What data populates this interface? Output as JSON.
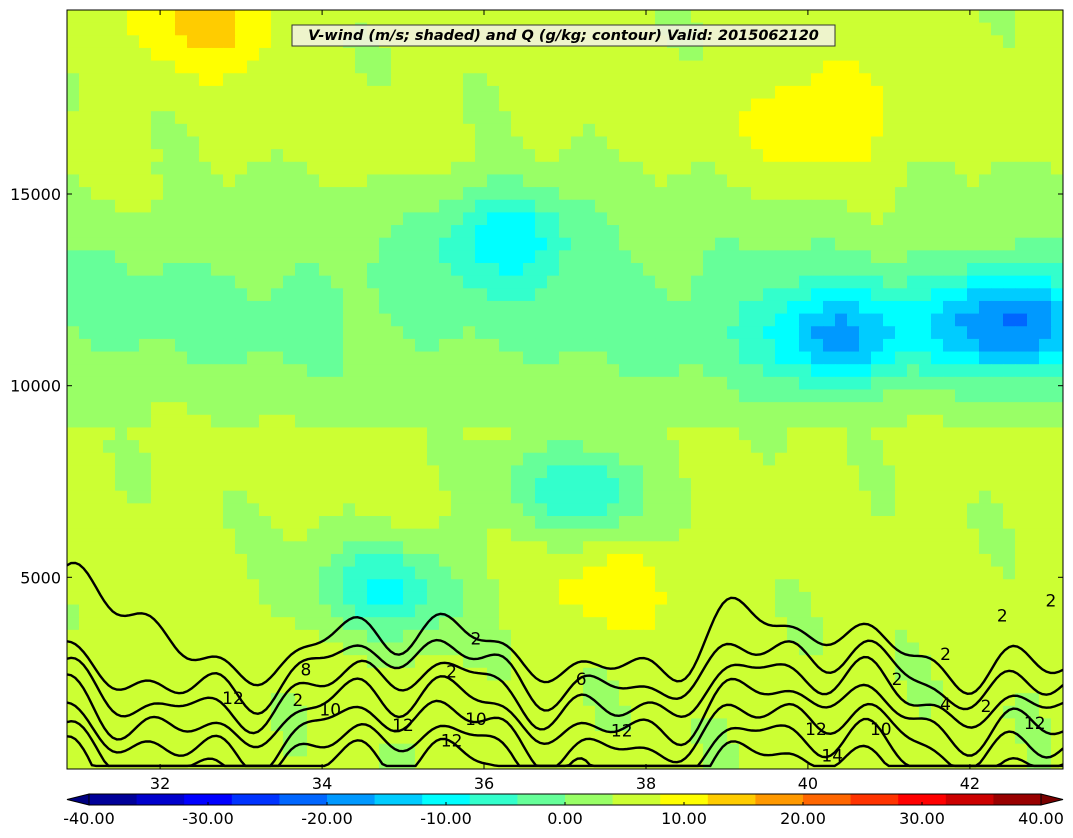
{
  "chart_data": {
    "type": "heatmap",
    "title": "V-wind (m/s; shaded) and Q (g/kg; contour) Valid: 2015062120",
    "xlabel": "",
    "ylabel": "",
    "xlim": [
      30.85,
      43.15
    ],
    "ylim": [
      0,
      19800
    ],
    "x_ticks": [
      32,
      34,
      36,
      38,
      40,
      42
    ],
    "y_ticks": [
      5000,
      10000,
      15000
    ],
    "grid": false,
    "colormap": "jet",
    "colorbar": {
      "range": [
        -40,
        40
      ],
      "levels": [
        -44,
        -40,
        -36,
        -32,
        -28,
        -24,
        -20,
        -16,
        -12,
        -8,
        -4,
        0,
        4,
        8,
        12,
        16,
        20,
        24,
        28,
        32,
        36,
        40,
        44
      ],
      "ticks": [
        "-40.00",
        "-30.00",
        "-20.00",
        "-10.00",
        "0.00",
        "10.00",
        "20.00",
        "30.00",
        "40.00"
      ],
      "extend": "both",
      "placement": "bottom"
    },
    "shaded_field": {
      "name": "V-wind (m/s)",
      "features": [
        {
          "kind": "max",
          "x": 40.2,
          "y": 17100,
          "value": 10
        },
        {
          "kind": "max",
          "x": 32.6,
          "y": 19600,
          "value": 12
        },
        {
          "kind": "max",
          "x": 37.6,
          "y": 4900,
          "value": 8
        },
        {
          "kind": "min",
          "x": 42.5,
          "y": 11700,
          "value": -14
        },
        {
          "kind": "min",
          "x": 40.3,
          "y": 11200,
          "value": -12
        },
        {
          "kind": "min",
          "x": 36.3,
          "y": 14000,
          "value": -10
        },
        {
          "kind": "min",
          "x": 34.8,
          "y": 4700,
          "value": -10
        },
        {
          "kind": "min",
          "x": 37.2,
          "y": 7300,
          "value": -9
        }
      ]
    },
    "contours": {
      "name": "Q (g/kg)",
      "color": "#000000",
      "levels": [
        2,
        4,
        6,
        8,
        10,
        12,
        14
      ],
      "labels": [
        {
          "text": "8",
          "x": 33.8,
          "y": 2600
        },
        {
          "text": "12",
          "x": 32.9,
          "y": 1850
        },
        {
          "text": "2",
          "x": 33.7,
          "y": 1800
        },
        {
          "text": "10",
          "x": 34.1,
          "y": 1550
        },
        {
          "text": "12",
          "x": 35.0,
          "y": 1150
        },
        {
          "text": "2",
          "x": 35.6,
          "y": 2550
        },
        {
          "text": "2",
          "x": 35.9,
          "y": 3400
        },
        {
          "text": "12",
          "x": 35.6,
          "y": 750
        },
        {
          "text": "10",
          "x": 35.9,
          "y": 1300
        },
        {
          "text": "6",
          "x": 37.2,
          "y": 2350
        },
        {
          "text": "12",
          "x": 37.7,
          "y": 1000
        },
        {
          "text": "12",
          "x": 40.1,
          "y": 1050
        },
        {
          "text": "14",
          "x": 40.3,
          "y": 350
        },
        {
          "text": "10",
          "x": 40.9,
          "y": 1050
        },
        {
          "text": "2",
          "x": 41.1,
          "y": 2350
        },
        {
          "text": "2",
          "x": 41.7,
          "y": 3000
        },
        {
          "text": "4",
          "x": 41.7,
          "y": 1700
        },
        {
          "text": "2",
          "x": 42.2,
          "y": 1650
        },
        {
          "text": "2",
          "x": 42.4,
          "y": 4000
        },
        {
          "text": "2",
          "x": 43.0,
          "y": 4400
        },
        {
          "text": "12",
          "x": 42.8,
          "y": 1200
        }
      ]
    }
  }
}
